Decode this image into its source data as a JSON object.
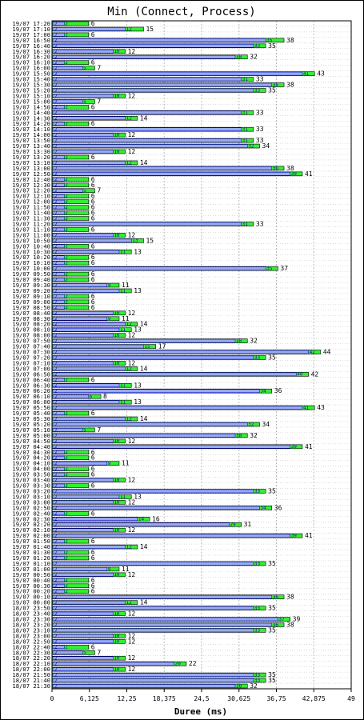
{
  "chart_data": {
    "type": "bar",
    "orientation": "horizontal",
    "title": "Min (Connect, Process)",
    "xlabel": "Duree (ms)",
    "ylabel": "",
    "xlim": [
      0,
      49
    ],
    "x_ticks": [
      "0",
      "6,125",
      "12,25",
      "18,375",
      "24,5",
      "30,625",
      "36,75",
      "42,875",
      "49"
    ],
    "grid": true,
    "colors": {
      "bar_fill": "#33ee33",
      "bar_stroke": "#000000",
      "inner_fill": "#99aaee",
      "inner_stroke": "#0000cc",
      "grid": "#bbbbbb"
    },
    "categories": [
      "19/07 17:20",
      "19/07 17:10",
      "19/07 17:00",
      "19/07 16:50",
      "19/07 16:40",
      "19/07 16:30",
      "19/07 16:20",
      "19/07 16:10",
      "19/07 16:00",
      "19/07 15:50",
      "19/07 15:40",
      "19/07 15:30",
      "19/07 15:20",
      "19/07 15:10",
      "19/07 15:00",
      "19/07 14:50",
      "19/07 14:40",
      "19/07 14:30",
      "19/07 14:20",
      "19/07 14:10",
      "19/07 14:00",
      "19/07 13:50",
      "19/07 13:40",
      "19/07 13:30",
      "19/07 13:20",
      "19/07 13:10",
      "19/07 13:00",
      "19/07 12:50",
      "19/07 12:40",
      "19/07 12:30",
      "19/07 12:20",
      "19/07 12:10",
      "19/07 12:00",
      "19/07 11:50",
      "19/07 11:40",
      "19/07 11:30",
      "19/07 11:20",
      "19/07 11:10",
      "19/07 11:00",
      "19/07 10:50",
      "19/07 10:40",
      "19/07 10:30",
      "19/07 10:20",
      "19/07 10:10",
      "19/07 10:00",
      "19/07 09:50",
      "19/07 09:40",
      "19/07 09:30",
      "19/07 09:20",
      "19/07 09:10",
      "19/07 09:00",
      "19/07 08:50",
      "19/07 08:40",
      "19/07 08:30",
      "19/07 08:20",
      "19/07 08:10",
      "19/07 08:00",
      "19/07 07:50",
      "19/07 07:40",
      "19/07 07:30",
      "19/07 07:20",
      "19/07 07:10",
      "19/07 07:00",
      "19/07 06:50",
      "19/07 06:40",
      "19/07 06:30",
      "19/07 06:20",
      "19/07 06:10",
      "19/07 06:00",
      "19/07 05:50",
      "19/07 05:40",
      "19/07 05:30",
      "19/07 05:20",
      "19/07 05:10",
      "19/07 05:00",
      "19/07 04:50",
      "19/07 04:40",
      "19/07 04:30",
      "19/07 04:20",
      "19/07 04:10",
      "19/07 04:00",
      "19/07 03:50",
      "19/07 03:40",
      "19/07 03:30",
      "19/07 03:20",
      "19/07 03:10",
      "19/07 03:00",
      "19/07 02:50",
      "19/07 02:40",
      "19/07 02:30",
      "19/07 02:20",
      "19/07 02:10",
      "19/07 02:00",
      "19/07 01:50",
      "19/07 01:40",
      "19/07 01:30",
      "19/07 01:20",
      "19/07 01:10",
      "19/07 01:00",
      "19/07 00:50",
      "19/07 00:40",
      "19/07 00:30",
      "19/07 00:20",
      "19/07 00:10",
      "19/07 00:00",
      "18/07 23:50",
      "18/07 23:40",
      "18/07 23:30",
      "18/07 23:20",
      "18/07 23:10",
      "18/07 23:00",
      "18/07 22:50",
      "18/07 22:40",
      "18/07 22:30",
      "18/07 22:20",
      "18/07 22:10",
      "18/07 22:00",
      "18/07 21:50",
      "18/07 21:40",
      "18/07 21:30"
    ],
    "series": [
      {
        "values": [
          6,
          15,
          6,
          38,
          35,
          12,
          32,
          6,
          7,
          43,
          33,
          38,
          35,
          12,
          7,
          6,
          33,
          14,
          6,
          33,
          12,
          33,
          34,
          12,
          6,
          14,
          38,
          41,
          6,
          6,
          7,
          6,
          6,
          6,
          6,
          6,
          33,
          6,
          12,
          15,
          6,
          13,
          6,
          6,
          37,
          6,
          6,
          11,
          13,
          6,
          6,
          6,
          12,
          11,
          14,
          13,
          12,
          32,
          17,
          44,
          35,
          12,
          14,
          42,
          6,
          13,
          36,
          8,
          13,
          43,
          6,
          14,
          34,
          7,
          32,
          12,
          41,
          6,
          6,
          11,
          6,
          6,
          12,
          6,
          35,
          13,
          12,
          36,
          6,
          16,
          31,
          12,
          41,
          6,
          14,
          6,
          6,
          35,
          11,
          12,
          6,
          6,
          6,
          38,
          14,
          35,
          12,
          39,
          38,
          35,
          12,
          12,
          6,
          7,
          12,
          22,
          12,
          35,
          35,
          32
        ],
        "inner_values": [
          2,
          12,
          2,
          35,
          33,
          10,
          30,
          2,
          5,
          41,
          31,
          36,
          33,
          10,
          5,
          2,
          31,
          12,
          2,
          31,
          10,
          31,
          32,
          10,
          2,
          12,
          36,
          39,
          2,
          2,
          5,
          2,
          2,
          2,
          2,
          2,
          31,
          2,
          10,
          13,
          2,
          11,
          2,
          2,
          35,
          2,
          2,
          9,
          11,
          2,
          2,
          2,
          10,
          9,
          12,
          11,
          10,
          30,
          15,
          42,
          33,
          10,
          12,
          40,
          2,
          11,
          34,
          6,
          11,
          41,
          2,
          12,
          32,
          5,
          30,
          10,
          39,
          2,
          2,
          9,
          2,
          2,
          10,
          2,
          33,
          11,
          10,
          34,
          2,
          14,
          29,
          10,
          39,
          2,
          12,
          2,
          2,
          33,
          9,
          10,
          2,
          2,
          2,
          36,
          12,
          33,
          10,
          37,
          36,
          33,
          10,
          10,
          2,
          5,
          10,
          20,
          10,
          33,
          33,
          30
        ]
      }
    ]
  }
}
